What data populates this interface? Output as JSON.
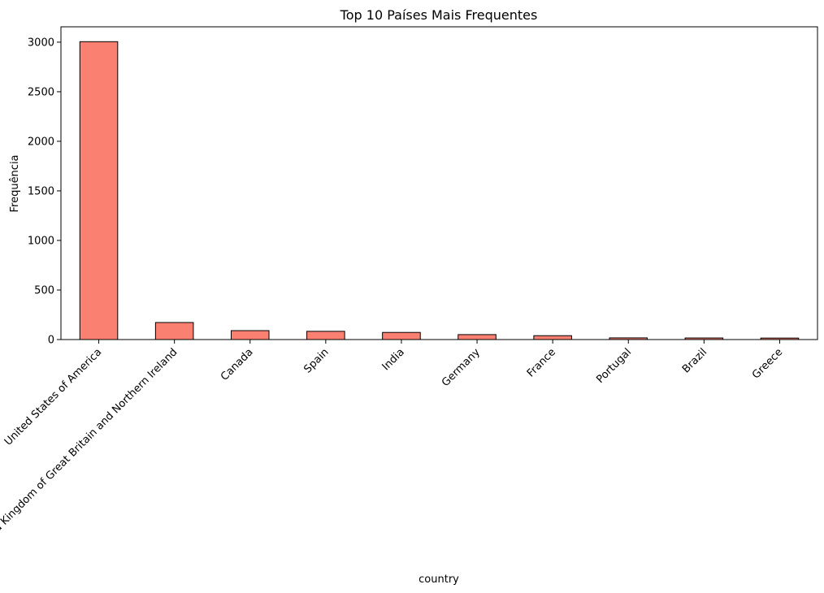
{
  "chart_data": {
    "type": "bar",
    "title": "Top 10 Países Mais Frequentes",
    "xlabel": "country",
    "ylabel": "Frequência",
    "categories": [
      "United States of America",
      "United Kingdom of Great Britain and Northern Ireland",
      "Canada",
      "Spain",
      "India",
      "Germany",
      "France",
      "Portugal",
      "Brazil",
      "Greece"
    ],
    "values": [
      3005,
      172,
      90,
      83,
      72,
      50,
      39,
      17,
      16,
      15
    ],
    "ylim": [
      0,
      3155
    ],
    "yticks": [
      0,
      500,
      1000,
      1500,
      2000,
      2500,
      3000
    ],
    "grid": false,
    "legend": "none",
    "colors": {
      "bar_fill": "#fa8072",
      "bar_edge": "#000000",
      "axis": "#000000"
    }
  }
}
